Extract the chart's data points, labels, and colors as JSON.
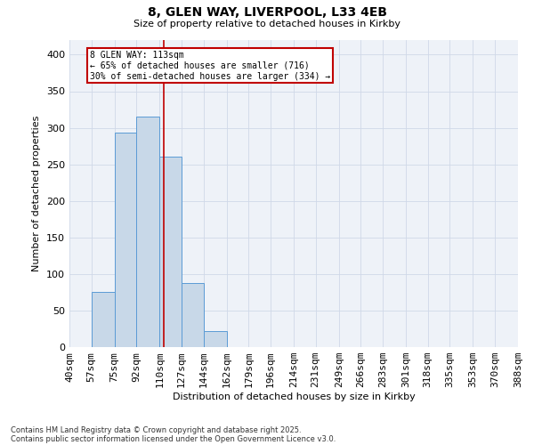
{
  "title1": "8, GLEN WAY, LIVERPOOL, L33 4EB",
  "title2": "Size of property relative to detached houses in Kirkby",
  "xlabel": "Distribution of detached houses by size in Kirkby",
  "ylabel": "Number of detached properties",
  "bin_labels": [
    "40sqm",
    "57sqm",
    "75sqm",
    "92sqm",
    "110sqm",
    "127sqm",
    "144sqm",
    "162sqm",
    "179sqm",
    "196sqm",
    "214sqm",
    "231sqm",
    "249sqm",
    "266sqm",
    "283sqm",
    "301sqm",
    "318sqm",
    "335sqm",
    "353sqm",
    "370sqm",
    "388sqm"
  ],
  "bin_edges": [
    40,
    57,
    75,
    92,
    110,
    127,
    144,
    162,
    179,
    196,
    214,
    231,
    249,
    266,
    283,
    301,
    318,
    335,
    353,
    370,
    388
  ],
  "bar_values": [
    0,
    75,
    293,
    315,
    260,
    88,
    22,
    0,
    0,
    0,
    0,
    0,
    0,
    0,
    0,
    0,
    0,
    0,
    0,
    0
  ],
  "bar_color": "#c8d8e8",
  "bar_edge_color": "#5b9bd5",
  "property_size": 113,
  "vline_color": "#c00000",
  "annotation_line1": "8 GLEN WAY: 113sqm",
  "annotation_line2": "← 65% of detached houses are smaller (716)",
  "annotation_line3": "30% of semi-detached houses are larger (334) →",
  "annotation_box_color": "#c00000",
  "ylim": [
    0,
    420
  ],
  "yticks": [
    0,
    50,
    100,
    150,
    200,
    250,
    300,
    350,
    400
  ],
  "grid_color": "#d0d8e8",
  "background_color": "#eef2f8",
  "footnote1": "Contains HM Land Registry data © Crown copyright and database right 2025.",
  "footnote2": "Contains public sector information licensed under the Open Government Licence v3.0."
}
